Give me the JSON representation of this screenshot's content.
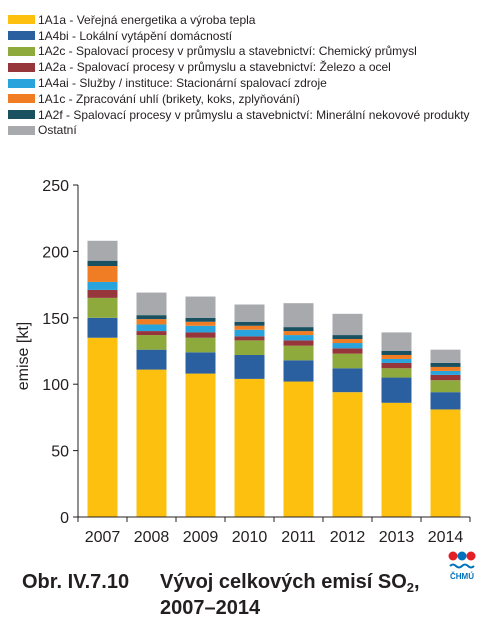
{
  "figure": {
    "caption_number": "Obr. IV.7.10",
    "caption_title_main": "Vývoj celkových emisí SO",
    "caption_title_sub": "2",
    "caption_title_end": ",",
    "caption_title_line2": "2007–2014",
    "logo_text": "ČHMÚ"
  },
  "colors": {
    "axis": "#231f20",
    "gridline": "#bdbdbd",
    "logo_red": "#e31e24",
    "logo_blue": "#0072bc"
  },
  "chart_data": {
    "type": "bar",
    "stacked": true,
    "title": "",
    "xlabel": "",
    "ylabel": "emise [kt]",
    "ylim": [
      0,
      250
    ],
    "yticks": [
      0,
      50,
      100,
      150,
      200,
      250
    ],
    "grid": false,
    "legend_position": "top",
    "categories": [
      "2007",
      "2008",
      "2009",
      "2010",
      "2011",
      "2012",
      "2013",
      "2014"
    ],
    "series": [
      {
        "name": "1A1a - Veřejná energetika a výroba tepla",
        "color": "#fdc00f",
        "values": [
          135,
          111,
          108,
          104,
          102,
          94,
          86,
          81
        ]
      },
      {
        "name": "1A4bi - Lokální vytápění domácností",
        "color": "#2a5fa0",
        "values": [
          15,
          15,
          16,
          18,
          16,
          18,
          19,
          13
        ]
      },
      {
        "name": "1A2c - Spalovací procesy v průmyslu a stavebnictví: Chemický průmysl",
        "color": "#8faa3c",
        "values": [
          15,
          11,
          11,
          11,
          11,
          11,
          7,
          9
        ]
      },
      {
        "name": "1A2a - Spalovací procesy v průmyslu a stavebnictví: Železo a ocel",
        "color": "#96353a",
        "values": [
          6,
          3,
          4,
          3,
          4,
          4,
          4,
          4
        ]
      },
      {
        "name": "1A4ai - Služby / instituce: Stacionární spalovací zdroje",
        "color": "#29a3dc",
        "values": [
          6,
          5,
          5,
          5,
          4,
          4,
          3,
          3
        ]
      },
      {
        "name": "1A1c - Zpracování uhlí (brikety, koks, zplyňování)",
        "color": "#f07d23",
        "values": [
          12,
          4,
          3,
          3,
          3,
          3,
          3,
          3
        ]
      },
      {
        "name": "1A2f - Spalovací procesy v průmyslu a stavebnictví: Minerální nekovové produkty",
        "color": "#1a5160",
        "values": [
          4,
          3,
          3,
          3,
          3,
          3,
          3,
          3
        ]
      },
      {
        "name": "Ostatní",
        "color": "#a7a9ac",
        "values": [
          15,
          17,
          16,
          13,
          18,
          16,
          14,
          10
        ]
      }
    ]
  }
}
